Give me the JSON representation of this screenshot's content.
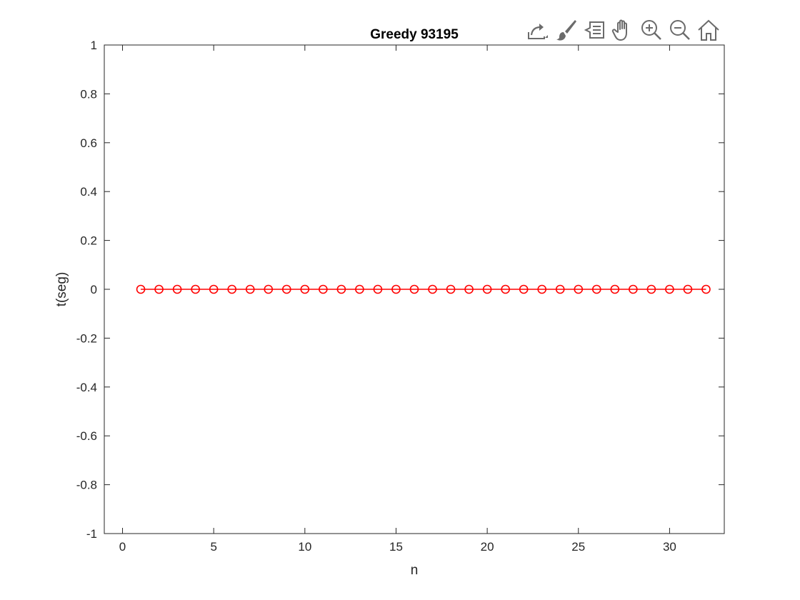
{
  "toolbar": {
    "buttons": [
      {
        "name": "export-icon",
        "tooltip": ""
      },
      {
        "name": "brush-icon",
        "tooltip": ""
      },
      {
        "name": "data-tips-icon",
        "tooltip": ""
      },
      {
        "name": "pan-hand-icon",
        "tooltip": ""
      },
      {
        "name": "zoom-in-icon",
        "tooltip": ""
      },
      {
        "name": "zoom-out-icon",
        "tooltip": ""
      },
      {
        "name": "home-icon",
        "tooltip": ""
      }
    ]
  },
  "chart_data": {
    "type": "line",
    "title": "Greedy 93195",
    "xlabel": "n",
    "ylabel": "t(seg)",
    "xlim": [
      -1,
      33
    ],
    "ylim": [
      -1,
      1
    ],
    "xticks": [
      0,
      5,
      10,
      15,
      20,
      25,
      30
    ],
    "yticks": [
      -1,
      -0.8,
      -0.6,
      -0.4,
      -0.2,
      0,
      0.2,
      0.4,
      0.6,
      0.8,
      1
    ],
    "xtick_labels": [
      "0",
      "5",
      "10",
      "15",
      "20",
      "25",
      "30"
    ],
    "ytick_labels": [
      "-1",
      "-0.8",
      "-0.6",
      "-0.4",
      "-0.2",
      "0",
      "0.2",
      "0.4",
      "0.6",
      "0.8",
      "1"
    ],
    "grid": false,
    "series": [
      {
        "color": "#ff0000",
        "marker": "circle",
        "x": [
          1,
          2,
          3,
          4,
          5,
          6,
          7,
          8,
          9,
          10,
          11,
          12,
          13,
          14,
          15,
          16,
          17,
          18,
          19,
          20,
          21,
          22,
          23,
          24,
          25,
          26,
          27,
          28,
          29,
          30,
          31,
          32
        ],
        "y": [
          0,
          0,
          0,
          0,
          0,
          0,
          0,
          0,
          0,
          0,
          0,
          0,
          0,
          0,
          0,
          0,
          0,
          0,
          0,
          0,
          0,
          0,
          0,
          0,
          0,
          0,
          0,
          0,
          0,
          0,
          0,
          0
        ]
      }
    ]
  }
}
